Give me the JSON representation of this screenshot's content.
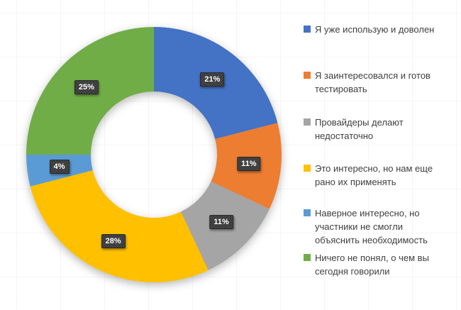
{
  "chart_data": {
    "type": "pie",
    "subtype": "donut",
    "title": "",
    "legend_position": "right",
    "direction": "clockwise",
    "start_angle_deg": 0,
    "donut_hole_ratio": 0.49,
    "categories": [
      "Я уже использую и доволен",
      "Я заинтересовался и готов тестировать",
      "Провайдеры делают недостаточно",
      "Это интересно, но нам еще рано их применять",
      "Наверное интересно, но участники не смогли объяснить необходимость",
      "Ничего не понял, о чем вы сегодня говорили"
    ],
    "values": [
      21,
      11,
      11,
      28,
      4,
      25
    ],
    "labels": [
      "21%",
      "11%",
      "11%",
      "28%",
      "4%",
      "25%"
    ],
    "colors": [
      "#4472C4",
      "#ED7D31",
      "#A5A5A5",
      "#FFC000",
      "#5B9BD5",
      "#70AD47"
    ],
    "data_label_style": {
      "background": "#404040",
      "text_color": "#FFFFFF"
    }
  },
  "legend": {
    "text_color": "#404040"
  }
}
